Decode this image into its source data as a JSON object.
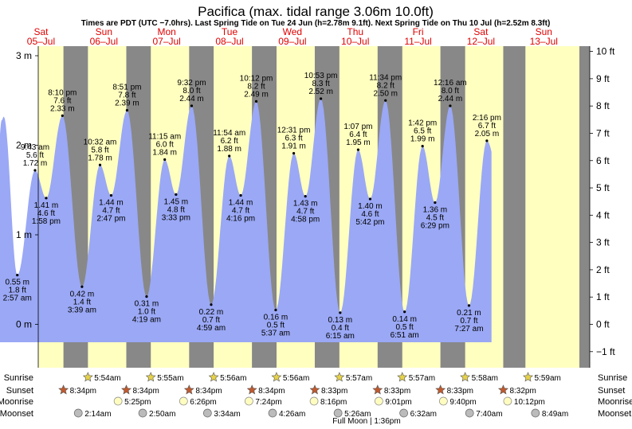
{
  "header": {
    "title": "Pacifica (max. tidal range 3.06m 10.0ft)",
    "subtitle": "Times are PDT (UTC −7.0hrs). Last Spring Tide on Tue 24 Jun (h=2.78m 9.1ft). Next Spring Tide on Thu 10 Jul (h=2.52m 8.3ft)"
  },
  "colors": {
    "day": "#ffffc0",
    "night": "#888888",
    "tide_fill": "#9aa8f5",
    "header_day": "#e00000",
    "moon_fill": "#fffcc0",
    "moonset_fill": "#bbbbbb",
    "sun_fill": "#e6d24a",
    "sunset_fill": "#c05a2e"
  },
  "chart_data": {
    "type": "area",
    "x_unit": "hours from 00:00 on Sat 05-Jul (PDT)",
    "days": [
      {
        "name": "Sat",
        "date": "05–Jul"
      },
      {
        "name": "Sun",
        "date": "06–Jul"
      },
      {
        "name": "Mon",
        "date": "07–Jul"
      },
      {
        "name": "Tue",
        "date": "08–Jul"
      },
      {
        "name": "Wed",
        "date": "09–Jul"
      },
      {
        "name": "Thu",
        "date": "10–Jul"
      },
      {
        "name": "Fri",
        "date": "11–Jul"
      },
      {
        "name": "Sat",
        "date": "12–Jul"
      },
      {
        "name": "Sun",
        "date": "13–Jul"
      }
    ],
    "y_left_unit": "m",
    "y_left_ticks": [
      {
        "v": 0,
        "label": "0 m"
      },
      {
        "v": 1,
        "label": "1 m"
      },
      {
        "v": 2,
        "label": "2 m"
      },
      {
        "v": 3,
        "label": "3 m"
      }
    ],
    "y_right_unit": "ft",
    "y_right_ticks": [
      {
        "v": -1,
        "label": "−1 ft"
      },
      {
        "v": 0,
        "label": "0 ft"
      },
      {
        "v": 1,
        "label": "1 ft"
      },
      {
        "v": 2,
        "label": "2 ft"
      },
      {
        "v": 3,
        "label": "3 ft"
      },
      {
        "v": 4,
        "label": "4 ft"
      },
      {
        "v": 5,
        "label": "5 ft"
      },
      {
        "v": 6,
        "label": "6 ft"
      },
      {
        "v": 7,
        "label": "7 ft"
      },
      {
        "v": 8,
        "label": "8 ft"
      },
      {
        "v": 9,
        "label": "9 ft"
      },
      {
        "v": 10,
        "label": "10 ft"
      }
    ],
    "ylim_m": [
      -0.5,
      3.06
    ],
    "start_height_m": 2.3,
    "end_height_m": 1.6,
    "tides": [
      {
        "t": 2.95,
        "h": 0.55,
        "type": "low",
        "l1": "0.55 m",
        "l2": "1.8 ft",
        "l3": "2:57 am"
      },
      {
        "t": 9.72,
        "h": 1.72,
        "type": "high",
        "l1": "9:43 am",
        "l2": "5.6 ft",
        "l3": "1.72 m"
      },
      {
        "t": 13.97,
        "h": 1.41,
        "type": "low",
        "l1": "1.41 m",
        "l2": "4.6 ft",
        "l3": "1:58 pm"
      },
      {
        "t": 20.17,
        "h": 2.33,
        "type": "high",
        "l1": "8:10 pm",
        "l2": "7.6 ft",
        "l3": "2.33 m"
      },
      {
        "t": 27.65,
        "h": 0.42,
        "type": "low",
        "l1": "0.42 m",
        "l2": "1.4 ft",
        "l3": "3:39 am"
      },
      {
        "t": 34.53,
        "h": 1.78,
        "type": "high",
        "l1": "10:32 am",
        "l2": "5.8 ft",
        "l3": "1.78 m"
      },
      {
        "t": 38.78,
        "h": 1.44,
        "type": "low",
        "l1": "1.44 m",
        "l2": "4.7 ft",
        "l3": "2:47 pm"
      },
      {
        "t": 44.85,
        "h": 2.39,
        "type": "high",
        "l1": "8:51 pm",
        "l2": "7.8 ft",
        "l3": "2.39 m"
      },
      {
        "t": 52.32,
        "h": 0.31,
        "type": "low",
        "l1": "0.31 m",
        "l2": "1.0 ft",
        "l3": "4:19 am"
      },
      {
        "t": 59.25,
        "h": 1.84,
        "type": "high",
        "l1": "11:15 am",
        "l2": "6.0 ft",
        "l3": "1.84 m"
      },
      {
        "t": 63.55,
        "h": 1.45,
        "type": "low",
        "l1": "1.45 m",
        "l2": "4.8 ft",
        "l3": "3:33 pm"
      },
      {
        "t": 69.53,
        "h": 2.44,
        "type": "high",
        "l1": "9:32 pm",
        "l2": "8.0 ft",
        "l3": "2.44 m"
      },
      {
        "t": 76.98,
        "h": 0.22,
        "type": "low",
        "l1": "0.22 m",
        "l2": "0.7 ft",
        "l3": "4:59 am"
      },
      {
        "t": 83.9,
        "h": 1.88,
        "type": "high",
        "l1": "11:54 am",
        "l2": "6.2 ft",
        "l3": "1.88 m"
      },
      {
        "t": 88.27,
        "h": 1.44,
        "type": "low",
        "l1": "1.44 m",
        "l2": "4.7 ft",
        "l3": "4:16 pm"
      },
      {
        "t": 94.2,
        "h": 2.49,
        "type": "high",
        "l1": "10:12 pm",
        "l2": "8.2 ft",
        "l3": "2.49 m"
      },
      {
        "t": 101.62,
        "h": 0.16,
        "type": "low",
        "l1": "0.16 m",
        "l2": "0.5 ft",
        "l3": "5:37 am"
      },
      {
        "t": 108.52,
        "h": 1.91,
        "type": "high",
        "l1": "12:31 pm",
        "l2": "6.3 ft",
        "l3": "1.91 m"
      },
      {
        "t": 112.97,
        "h": 1.43,
        "type": "low",
        "l1": "1.43 m",
        "l2": "4.7 ft",
        "l3": "4:58 pm"
      },
      {
        "t": 118.88,
        "h": 2.52,
        "type": "high",
        "l1": "10:53 pm",
        "l2": "8.3 ft",
        "l3": "2.52 m"
      },
      {
        "t": 126.25,
        "h": 0.13,
        "type": "low",
        "l1": "0.13 m",
        "l2": "0.4 ft",
        "l3": "6:15 am"
      },
      {
        "t": 133.12,
        "h": 1.95,
        "type": "high",
        "l1": "1:07 pm",
        "l2": "6.4 ft",
        "l3": "1.95 m"
      },
      {
        "t": 137.7,
        "h": 1.4,
        "type": "low",
        "l1": "1.40 m",
        "l2": "4.6 ft",
        "l3": "5:42 pm"
      },
      {
        "t": 143.57,
        "h": 2.5,
        "type": "high",
        "l1": "11:34 pm",
        "l2": "8.2 ft",
        "l3": "2.50 m"
      },
      {
        "t": 150.85,
        "h": 0.14,
        "type": "low",
        "l1": "0.14 m",
        "l2": "0.5 ft",
        "l3": "6:51 am"
      },
      {
        "t": 157.7,
        "h": 1.99,
        "type": "high",
        "l1": "1:42 pm",
        "l2": "6.5 ft",
        "l3": "1.99 m"
      },
      {
        "t": 162.48,
        "h": 1.36,
        "type": "low",
        "l1": "1.36 m",
        "l2": "4.5 ft",
        "l3": "6:29 pm"
      },
      {
        "t": 168.27,
        "h": 2.44,
        "type": "high",
        "l1": "12:16 am",
        "l2": "8.0 ft",
        "l3": "2.44 m"
      },
      {
        "t": 175.45,
        "h": 0.21,
        "type": "low",
        "l1": "0.21 m",
        "l2": "0.7 ft",
        "l3": "7:27 am"
      },
      {
        "t": 182.27,
        "h": 2.05,
        "type": "high",
        "l1": "2:16 pm",
        "l2": "6.7 ft",
        "l3": "2.05 m"
      }
    ],
    "nights": [
      {
        "start": -4,
        "end": 5.9
      },
      {
        "start": 20.57,
        "end": 29.92
      },
      {
        "start": 44.57,
        "end": 53.93
      },
      {
        "start": 68.57,
        "end": 77.93
      },
      {
        "start": 92.55,
        "end": 101.95
      },
      {
        "start": 116.55,
        "end": 125.95
      },
      {
        "start": 140.55,
        "end": 149.97
      },
      {
        "start": 164.53,
        "end": 173.98
      },
      {
        "start": 188.53,
        "end": 197
      }
    ]
  },
  "events": {
    "row_labels": [
      "Sunrise",
      "Sunset",
      "Moonrise",
      "Moonset"
    ],
    "sunrise": [
      {
        "t": 29.9,
        "label": "5:54am"
      },
      {
        "t": 53.92,
        "label": "5:55am"
      },
      {
        "t": 77.93,
        "label": "5:56am"
      },
      {
        "t": 101.93,
        "label": "5:56am"
      },
      {
        "t": 125.95,
        "label": "5:57am"
      },
      {
        "t": 149.95,
        "label": "5:57am"
      },
      {
        "t": 173.97,
        "label": "5:58am"
      },
      {
        "t": 197.98,
        "label": "5:59am"
      }
    ],
    "sunset": [
      {
        "t": 20.57,
        "label": "8:34pm"
      },
      {
        "t": 44.57,
        "label": "8:34pm"
      },
      {
        "t": 68.57,
        "label": "8:34pm"
      },
      {
        "t": 92.57,
        "label": "8:34pm"
      },
      {
        "t": 116.55,
        "label": "8:33pm"
      },
      {
        "t": 140.55,
        "label": "8:33pm"
      },
      {
        "t": 164.55,
        "label": "8:33pm"
      },
      {
        "t": 188.53,
        "label": "8:32pm"
      }
    ],
    "moonrise": [
      {
        "t": 41.42,
        "label": "5:25pm"
      },
      {
        "t": 66.43,
        "label": "6:26pm"
      },
      {
        "t": 91.4,
        "label": "7:24pm"
      },
      {
        "t": 116.27,
        "label": "8:16pm"
      },
      {
        "t": 141.02,
        "label": "9:01pm"
      },
      {
        "t": 165.67,
        "label": "9:40pm"
      },
      {
        "t": 190.2,
        "label": "10:12pm"
      }
    ],
    "moonset": [
      {
        "t": 26.23,
        "label": "2:14am"
      },
      {
        "t": 50.83,
        "label": "2:50am"
      },
      {
        "t": 75.57,
        "label": "3:34am"
      },
      {
        "t": 100.43,
        "label": "4:26am"
      },
      {
        "t": 125.43,
        "label": "5:26am"
      },
      {
        "t": 150.53,
        "label": "6:32am"
      },
      {
        "t": 175.67,
        "label": "7:40am"
      },
      {
        "t": 200.82,
        "label": "8:49am"
      }
    ],
    "full_moon": "Full Moon | 1:36pm"
  }
}
